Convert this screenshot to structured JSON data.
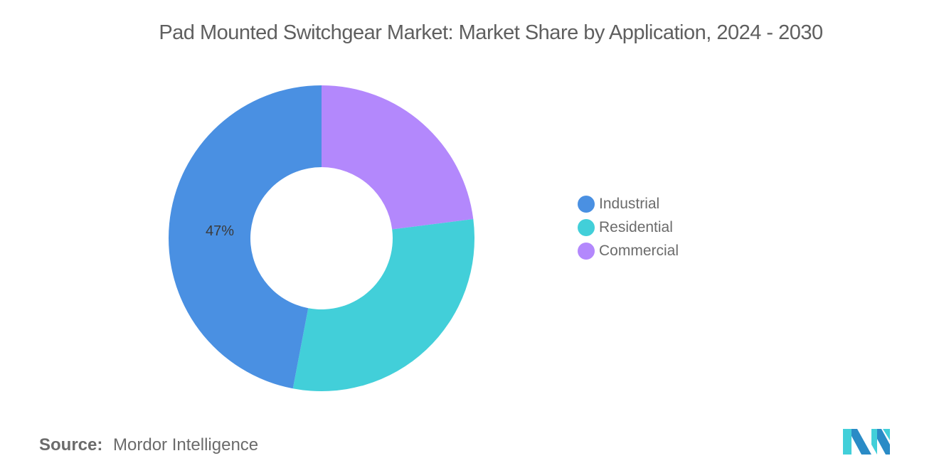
{
  "title": "Pad Mounted Switchgear Market: Market Share by Application, 2024 - 2030",
  "source": {
    "label": "Source:",
    "value": "Mordor Intelligence"
  },
  "legend": [
    {
      "label": "Industrial",
      "color": "#4A90E2"
    },
    {
      "label": "Residential",
      "color": "#42CFD9"
    },
    {
      "label": "Commercial",
      "color": "#B388FC"
    }
  ],
  "slice_label": "47%",
  "logo": {
    "name": "mordor-intelligence-logo",
    "colors": [
      "#2A8BC6",
      "#42CFD9"
    ]
  },
  "chart_data": {
    "type": "pie",
    "variant": "donut",
    "title": "Pad Mounted Switchgear Market: Market Share by Application, 2024 - 2030",
    "categories": [
      "Industrial",
      "Residential",
      "Commercial"
    ],
    "values": [
      47,
      30,
      23
    ],
    "colors": [
      "#4A90E2",
      "#42CFD9",
      "#B388FC"
    ],
    "labels_shown": {
      "Industrial": "47%"
    },
    "start_angle": "12 o'clock, clockwise order: Commercial, Residential, Industrial",
    "legend_position": "right",
    "source": "Mordor Intelligence"
  }
}
